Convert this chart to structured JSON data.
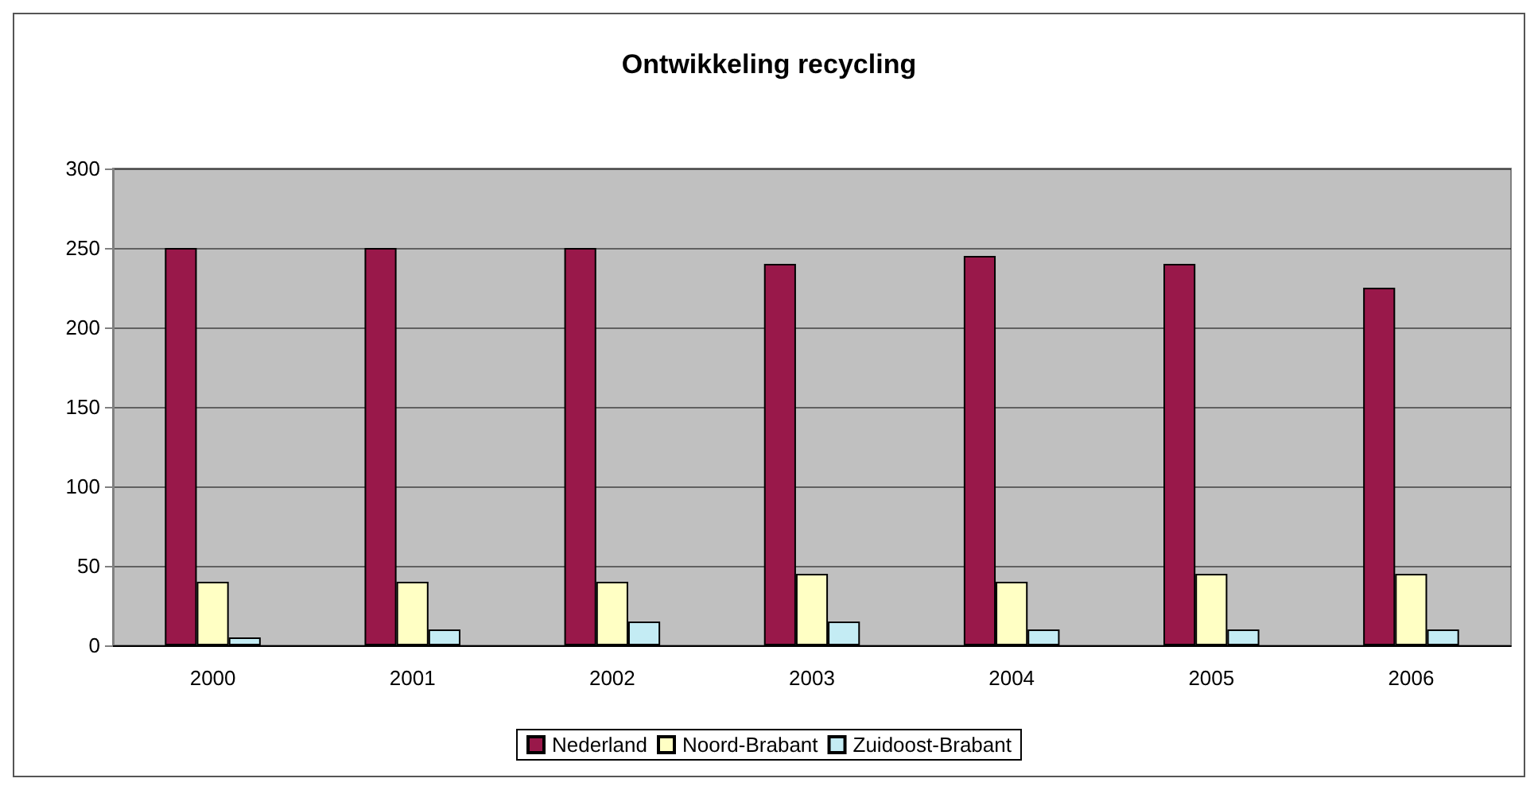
{
  "chart_data": {
    "type": "bar",
    "title": "Ontwikkeling recycling",
    "categories": [
      "2000",
      "2001",
      "2002",
      "2003",
      "2004",
      "2005",
      "2006"
    ],
    "series": [
      {
        "name": "Nederland",
        "color": "#99184a",
        "values": [
          250,
          250,
          250,
          240,
          245,
          240,
          225
        ]
      },
      {
        "name": "Noord-Brabant",
        "color": "#ffffc4",
        "values": [
          40,
          40,
          40,
          45,
          40,
          45,
          45
        ]
      },
      {
        "name": "Zuidoost-Brabant",
        "color": "#c4ecf4",
        "values": [
          5,
          10,
          15,
          15,
          10,
          10,
          10
        ]
      }
    ],
    "ylim": [
      0,
      300
    ],
    "yticks": [
      0,
      50,
      100,
      150,
      200,
      250,
      300
    ],
    "grid": "y",
    "legend": "bottom"
  }
}
